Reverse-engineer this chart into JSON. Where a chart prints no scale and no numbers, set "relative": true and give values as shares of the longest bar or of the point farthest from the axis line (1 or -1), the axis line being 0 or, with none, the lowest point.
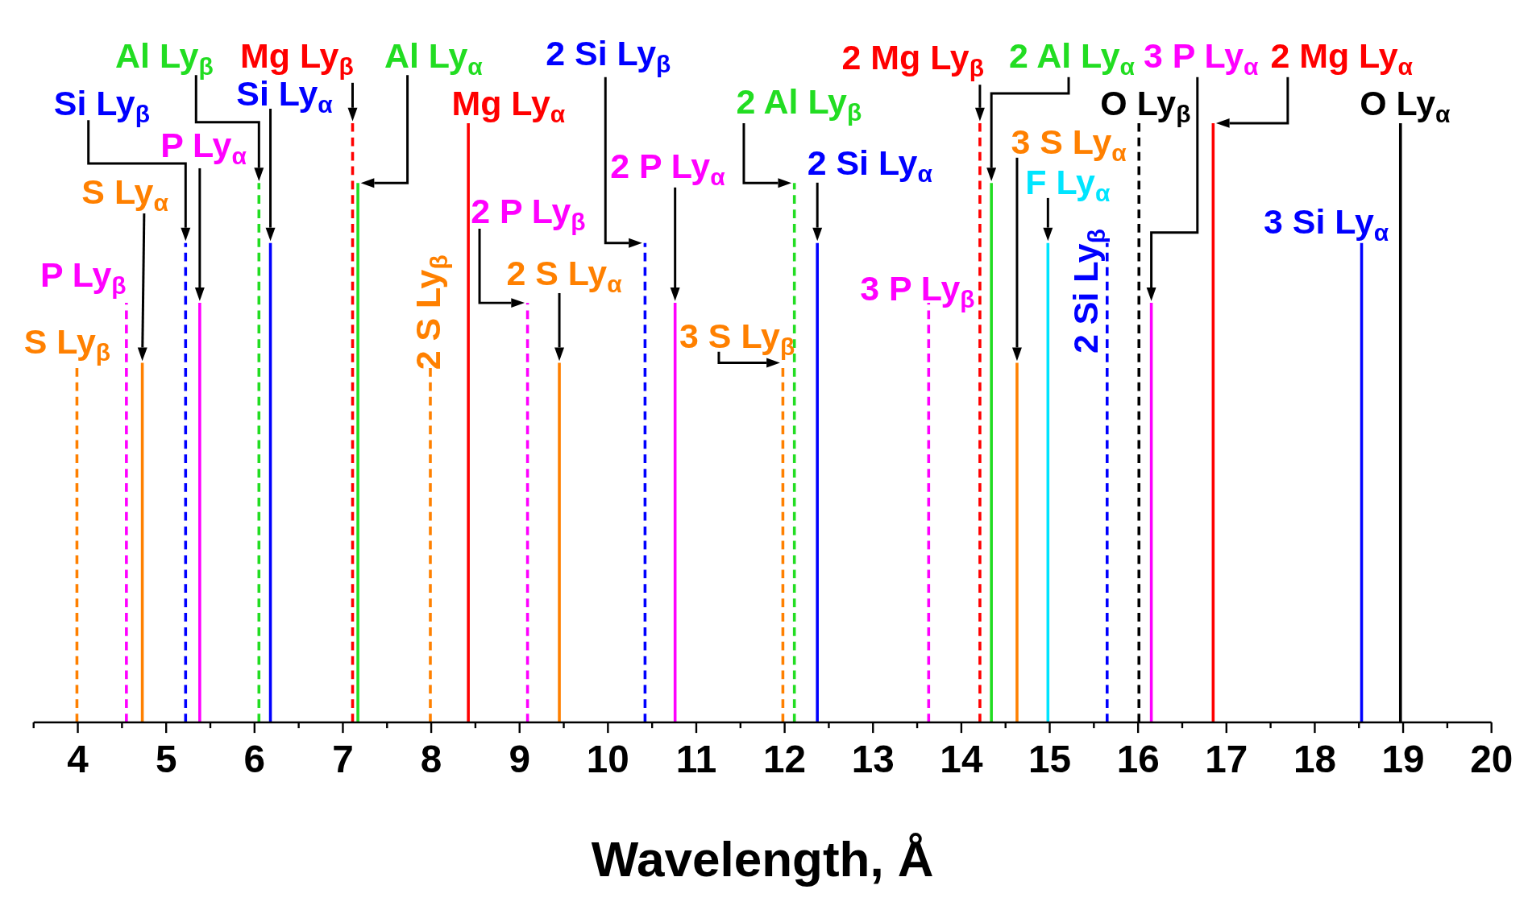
{
  "chart_data": {
    "type": "line",
    "relative": true,
    "xlabel": "Wavelength, Å",
    "xlim": [
      3.5,
      20
    ],
    "xticks": [
      {
        "value": 3.5,
        "label": null
      },
      4,
      {
        "value": 4.5,
        "label": null
      },
      5,
      {
        "value": 5.5,
        "label": null
      },
      6,
      {
        "value": 6.5,
        "label": null
      },
      7,
      {
        "value": 7.5,
        "label": null
      },
      8,
      {
        "value": 8.5,
        "label": null
      },
      9,
      {
        "value": 9.5,
        "label": null
      },
      10,
      {
        "value": 10.5,
        "label": null
      },
      11,
      {
        "value": 11.5,
        "label": null
      },
      12,
      {
        "value": 12.5,
        "label": null
      },
      13,
      {
        "value": 13.5,
        "label": null
      },
      14,
      {
        "value": 14.5,
        "label": null
      },
      15,
      {
        "value": 15.5,
        "label": null
      },
      16,
      {
        "value": 16.5,
        "label": null
      },
      17,
      {
        "value": 17.5,
        "label": null
      },
      18,
      {
        "value": 18.5,
        "label": null
      },
      19,
      {
        "value": 19.5,
        "label": null
      },
      20
    ],
    "marker": "none",
    "series": [
      {
        "color": "#ff8000",
        "line_style": "dashed",
        "x": [
          3.99,
          3.99
        ],
        "values": [
          0,
          0.6
        ]
      },
      {
        "color": "#ff00ff",
        "line_style": "dashed",
        "x": [
          4.55,
          4.55
        ],
        "values": [
          0,
          0.7
        ]
      },
      {
        "color": "#ff8000",
        "line_style": "solid",
        "x": [
          4.73,
          4.73
        ],
        "values": [
          0,
          0.6
        ]
      },
      {
        "color": "#0000ff",
        "line_style": "dashed",
        "x": [
          5.22,
          5.22
        ],
        "values": [
          0,
          0.8
        ]
      },
      {
        "color": "#ff00ff",
        "line_style": "solid",
        "x": [
          5.38,
          5.38
        ],
        "values": [
          0,
          0.7
        ]
      },
      {
        "color": "#22dd22",
        "line_style": "dashed",
        "x": [
          6.05,
          6.05
        ],
        "values": [
          0,
          0.9
        ]
      },
      {
        "color": "#0000ff",
        "line_style": "solid",
        "x": [
          6.18,
          6.18
        ],
        "values": [
          0,
          0.8
        ]
      },
      {
        "color": "#ff0000",
        "line_style": "dashed",
        "x": [
          7.11,
          7.11
        ],
        "values": [
          0,
          1
        ]
      },
      {
        "color": "#22dd22",
        "line_style": "solid",
        "x": [
          7.17,
          7.17
        ],
        "values": [
          0,
          0.9
        ]
      },
      {
        "color": "#ff8000",
        "line_style": "dashed",
        "x": [
          7.99,
          7.99
        ],
        "values": [
          0,
          0.6
        ]
      },
      {
        "color": "#ff0000",
        "line_style": "solid",
        "x": [
          8.42,
          8.42
        ],
        "values": [
          0,
          1
        ]
      },
      {
        "color": "#ff00ff",
        "line_style": "dashed",
        "x": [
          9.09,
          9.09
        ],
        "values": [
          0,
          0.7
        ]
      },
      {
        "color": "#ff8000",
        "line_style": "solid",
        "x": [
          9.45,
          9.45
        ],
        "values": [
          0,
          0.6
        ]
      },
      {
        "color": "#0000ff",
        "line_style": "dashed",
        "x": [
          10.42,
          10.42
        ],
        "values": [
          0,
          0.8
        ]
      },
      {
        "color": "#ff00ff",
        "line_style": "solid",
        "x": [
          10.76,
          10.76
        ],
        "values": [
          0,
          0.7
        ]
      },
      {
        "color": "#ff8000",
        "line_style": "dashed",
        "x": [
          11.98,
          11.98
        ],
        "values": [
          0,
          0.6
        ]
      },
      {
        "color": "#22dd22",
        "line_style": "dashed",
        "x": [
          12.11,
          12.11
        ],
        "values": [
          0,
          0.9
        ]
      },
      {
        "color": "#0000ff",
        "line_style": "solid",
        "x": [
          12.37,
          12.37
        ],
        "values": [
          0,
          0.8
        ]
      },
      {
        "color": "#ff00ff",
        "line_style": "dashed",
        "x": [
          13.63,
          13.63
        ],
        "values": [
          0,
          0.7
        ]
      },
      {
        "color": "#ff0000",
        "line_style": "dashed",
        "x": [
          14.21,
          14.21
        ],
        "values": [
          0,
          1
        ]
      },
      {
        "color": "#22dd22",
        "line_style": "solid",
        "x": [
          14.34,
          14.34
        ],
        "values": [
          0,
          0.9
        ]
      },
      {
        "color": "#ff8000",
        "line_style": "solid",
        "x": [
          14.63,
          14.63
        ],
        "values": [
          0,
          0.6
        ]
      },
      {
        "color": "#00e5ff",
        "line_style": "solid",
        "x": [
          14.98,
          14.98
        ],
        "values": [
          0,
          0.8
        ]
      },
      {
        "color": "#0000ff",
        "line_style": "dashed",
        "x": [
          15.65,
          15.65
        ],
        "values": [
          0,
          0.8
        ]
      },
      {
        "color": "#000000",
        "line_style": "dashed",
        "x": [
          16.01,
          16.01
        ],
        "values": [
          0,
          1
        ]
      },
      {
        "color": "#ff00ff",
        "line_style": "solid",
        "x": [
          16.15,
          16.15
        ],
        "values": [
          0,
          0.7
        ]
      },
      {
        "color": "#ff0000",
        "line_style": "solid",
        "x": [
          16.85,
          16.85
        ],
        "values": [
          0,
          1
        ]
      },
      {
        "color": "#0000ff",
        "line_style": "solid",
        "x": [
          18.53,
          18.53
        ],
        "values": [
          0,
          0.8
        ]
      },
      {
        "color": "#000000",
        "line_style": "solid",
        "x": [
          18.97,
          18.97
        ],
        "values": [
          0,
          1
        ]
      }
    ],
    "annotations": [
      "S Ly$_{β}$",
      "P Ly$_{β}$",
      "S Ly$_{α}$",
      "Si Ly$_{β}$",
      "P Ly$_{α}$",
      "Al Ly$_{β}$",
      "Si Ly$_{α}$",
      "Mg Ly$_{β}$",
      "Al Ly$_{α}$",
      "2 S Ly$_{β}$",
      "Mg Ly$_{α}$",
      "2 P Ly$_{β}$",
      "2 S Ly$_{α}$",
      "2 Si Ly$_{β}$",
      "2 P Ly$_{α}$",
      "3 S Ly$_{β}$",
      "2 Al Ly$_{β}$",
      "2 Si Ly$_{α}$",
      "3 P Ly$_{β}$",
      "2 Mg Ly$_{β}$",
      "2 Al Ly$_{α}$",
      "3 S Ly$_{α}$",
      "F Ly$_{α}$",
      "2 Si Ly$_{β}$",
      "O Ly$_{β}$",
      "3 P Ly$_{α}$",
      "2 Mg Ly$_{α}$",
      "3 Si Ly$_{α}$",
      "O Ly$_{α}$"
    ]
  }
}
